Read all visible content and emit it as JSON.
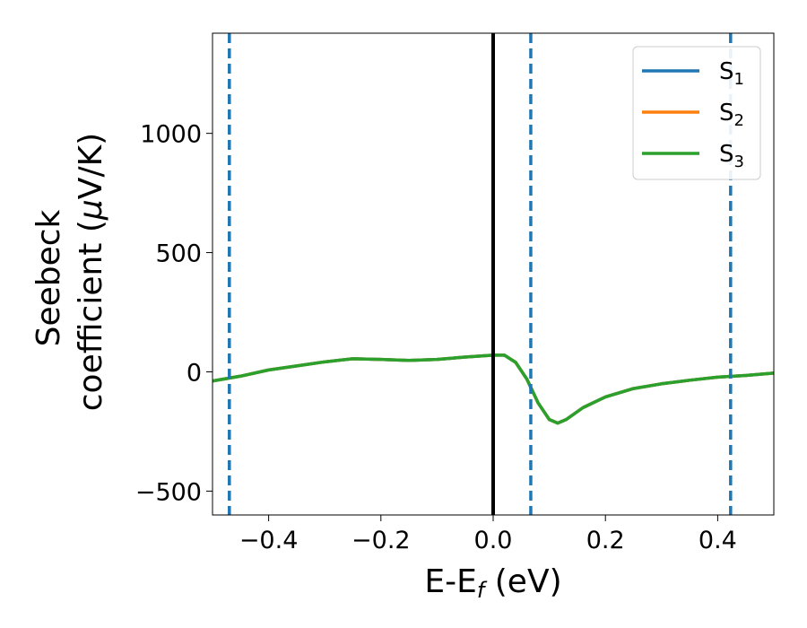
{
  "chart_data": {
    "type": "line",
    "title": "",
    "xlabel": {
      "main": "E-E",
      "sub": "f",
      "rest": " (eV)"
    },
    "ylabel": {
      "line1": "Seebeck",
      "line2_prefix": "coefficient  (",
      "mu": "μ",
      "line2_suffix": "V/K)"
    },
    "xlim": [
      -0.5,
      0.5
    ],
    "ylim": [
      -600,
      1420
    ],
    "xticks": [
      -0.4,
      -0.2,
      0.0,
      0.2,
      0.4
    ],
    "xtick_labels": [
      "−0.4",
      "−0.2",
      "0.0",
      "0.2",
      "0.4"
    ],
    "yticks": [
      -500,
      0,
      500,
      1000
    ],
    "ytick_labels": [
      "−500",
      "0",
      "500",
      "1000"
    ],
    "grid": false,
    "legend_position": "top-right",
    "fermi_level_x": 0.0,
    "dashed_vlines_x": [
      -0.47,
      0.067,
      0.423
    ],
    "series": [
      {
        "name": "S",
        "sub": "1",
        "color": "#1f77b4",
        "x": [
          -0.5,
          -0.45,
          -0.4,
          -0.35,
          -0.3,
          -0.25,
          -0.2,
          -0.15,
          -0.1,
          -0.05,
          0.0,
          0.02,
          0.04,
          0.06,
          0.08,
          0.1,
          0.115,
          0.13,
          0.16,
          0.2,
          0.25,
          0.3,
          0.35,
          0.4,
          0.45,
          0.5
        ],
        "y": [
          -38,
          -18,
          8,
          25,
          42,
          55,
          52,
          48,
          52,
          62,
          70,
          70,
          40,
          -30,
          -130,
          -200,
          -215,
          -200,
          -150,
          -105,
          -70,
          -50,
          -35,
          -22,
          -15,
          -5
        ]
      },
      {
        "name": "S",
        "sub": "2",
        "color": "#ff7f0e",
        "x": [
          -0.5,
          -0.45,
          -0.4,
          -0.35,
          -0.3,
          -0.25,
          -0.2,
          -0.15,
          -0.1,
          -0.05,
          0.0,
          0.02,
          0.04,
          0.06,
          0.08,
          0.1,
          0.115,
          0.13,
          0.16,
          0.2,
          0.25,
          0.3,
          0.35,
          0.4,
          0.45,
          0.5
        ],
        "y": [
          -38,
          -18,
          8,
          25,
          42,
          55,
          52,
          48,
          52,
          62,
          70,
          70,
          40,
          -30,
          -130,
          -200,
          -215,
          -200,
          -150,
          -105,
          -70,
          -50,
          -35,
          -22,
          -15,
          -5
        ]
      },
      {
        "name": "S",
        "sub": "3",
        "color": "#2ca02c",
        "x": [
          -0.5,
          -0.45,
          -0.4,
          -0.35,
          -0.3,
          -0.25,
          -0.2,
          -0.15,
          -0.1,
          -0.05,
          0.0,
          0.02,
          0.04,
          0.06,
          0.08,
          0.1,
          0.115,
          0.13,
          0.16,
          0.2,
          0.25,
          0.3,
          0.35,
          0.4,
          0.45,
          0.5
        ],
        "y": [
          -38,
          -18,
          8,
          25,
          42,
          55,
          52,
          48,
          52,
          62,
          70,
          70,
          40,
          -30,
          -130,
          -200,
          -215,
          -200,
          -150,
          -105,
          -70,
          -50,
          -35,
          -22,
          -15,
          -5
        ]
      }
    ]
  }
}
